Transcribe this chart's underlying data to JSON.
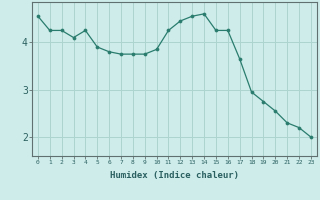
{
  "x": [
    0,
    1,
    2,
    3,
    4,
    5,
    6,
    7,
    8,
    9,
    10,
    11,
    12,
    13,
    14,
    15,
    16,
    17,
    18,
    19,
    20,
    21,
    22,
    23
  ],
  "y": [
    4.55,
    4.25,
    4.25,
    4.1,
    4.25,
    3.9,
    3.8,
    3.75,
    3.75,
    3.75,
    3.85,
    4.25,
    4.45,
    4.55,
    4.6,
    4.25,
    4.25,
    3.65,
    2.95,
    2.75,
    2.55,
    2.3,
    2.2,
    2.0
  ],
  "line_color": "#2a7d6e",
  "marker": "o",
  "marker_size": 2.2,
  "bg_color": "#ceecea",
  "grid_color": "#aed4d0",
  "xlabel": "Humidex (Indice chaleur)",
  "xlim": [
    -0.5,
    23.5
  ],
  "ylim": [
    1.6,
    4.85
  ],
  "yticks": [
    2,
    3,
    4
  ],
  "xticks": [
    0,
    1,
    2,
    3,
    4,
    5,
    6,
    7,
    8,
    9,
    10,
    11,
    12,
    13,
    14,
    15,
    16,
    17,
    18,
    19,
    20,
    21,
    22,
    23
  ]
}
